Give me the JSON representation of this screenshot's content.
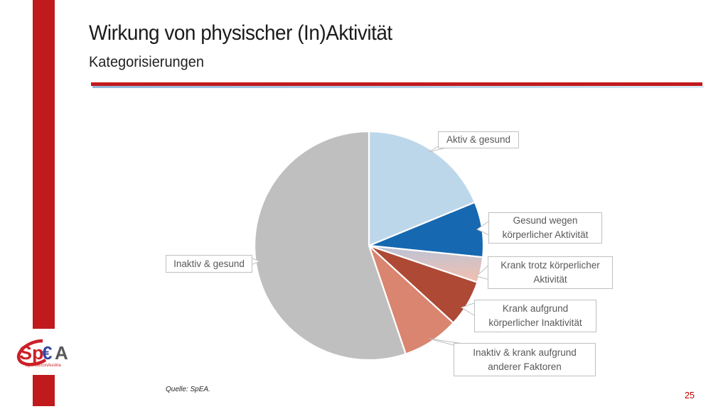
{
  "slide": {
    "title": "Wirkung von physischer (In)Aktivität",
    "subtitle": "Kategorisierungen",
    "source_note": "Quelle: SpEA.",
    "page_number": "25",
    "accent_red": "#c11a1d",
    "underline_blue": "#aecde8"
  },
  "logo": {
    "text_sp": "Sp",
    "text_euro": "€",
    "text_a": "A",
    "subtext": "SportsEconAustria",
    "red": "#cc2027",
    "blue": "#3347a2",
    "gray": "#58595b"
  },
  "chart_data": {
    "type": "pie",
    "title": "Kategorisierungen der Wirkung von physischer (In)Aktivität",
    "start_angle_deg": 0,
    "direction": "clockwise",
    "legend_position": "callout-labels",
    "slices": [
      {
        "label": "Aktiv & gesund",
        "value_pct": 18.8,
        "color": "#bdd7ea"
      },
      {
        "label": "Gesund wegen körperlicher Aktivität",
        "value_pct": 7.8,
        "color": "#1668b0"
      },
      {
        "label": "Krank trotz körperlicher Aktivität",
        "value_pct": 3.6,
        "color": "#b7c3d9",
        "gradient_to": "#eec0b3"
      },
      {
        "label": "Krank aufgrund körperlicher Inaktivität",
        "value_pct": 6.6,
        "color": "#ad4934"
      },
      {
        "label": "Inaktiv & krank aufgrund anderer Faktoren",
        "value_pct": 8.0,
        "color": "#d9856f"
      },
      {
        "label": "Inaktiv & gesund",
        "value_pct": 55.2,
        "color": "#bfbfbf"
      }
    ]
  }
}
